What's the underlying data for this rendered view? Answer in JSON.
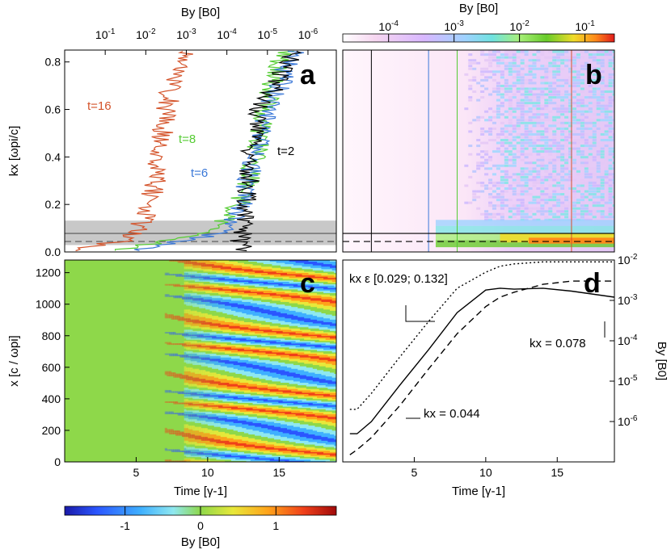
{
  "colors": {
    "t16": "#d4532a",
    "t8": "#55cc33",
    "t6": "#3a78d8",
    "t2": "#000000",
    "band": "#c8c8c8"
  },
  "chart_data": [
    {
      "id": "a",
      "type": "line",
      "panel_label": "a",
      "xlabel": "B_y [B_0]",
      "ylabel": "k_x [ω_pi/c]",
      "xscale": "log-reversed",
      "xlim": [
        1.0,
        2e-07
      ],
      "ylim": [
        0,
        0.85
      ],
      "x_ticks": [
        "10^-1",
        "10^-2",
        "10^-3",
        "10^-4",
        "10^-5",
        "10^-6"
      ],
      "y_ticks": [
        "0.0",
        "0.2",
        "0.4",
        "0.6",
        "0.8"
      ],
      "shaded_band_kx": [
        0.029,
        0.132
      ],
      "ref_lines": [
        {
          "kx": 0.078,
          "style": "solid"
        },
        {
          "kx": 0.044,
          "style": "dashed"
        }
      ],
      "series": [
        {
          "name": "t=16",
          "label": "t=16",
          "kx": [
            0.01,
            0.03,
            0.05,
            0.08,
            0.1,
            0.15,
            0.2,
            0.3,
            0.4,
            0.5,
            0.6,
            0.7,
            0.8,
            0.85
          ],
          "By": [
            0.4,
            0.15,
            0.03,
            0.02,
            0.015,
            0.01,
            0.008,
            0.006,
            0.005,
            0.004,
            0.003,
            0.0025,
            0.0015,
            0.001
          ]
        },
        {
          "name": "t=8",
          "label": "t=8",
          "kx": [
            0.01,
            0.03,
            0.05,
            0.08,
            0.1,
            0.15,
            0.2,
            0.3,
            0.4,
            0.5,
            0.6,
            0.7,
            0.8,
            0.85
          ],
          "By": [
            0.05,
            0.01,
            0.003,
            0.0003,
            0.0002,
            0.0001,
            5e-05,
            3e-05,
            2e-05,
            1.5e-05,
            1.2e-05,
            8e-06,
            5e-06,
            3e-06
          ]
        },
        {
          "name": "t=6",
          "label": "t=6",
          "kx": [
            0.01,
            0.03,
            0.05,
            0.08,
            0.1,
            0.15,
            0.2,
            0.3,
            0.4,
            0.5,
            0.6,
            0.7,
            0.8,
            0.85
          ],
          "By": [
            0.015,
            0.004,
            0.001,
            0.00015,
            0.0001,
            6e-05,
            4e-05,
            3e-05,
            2e-05,
            1.5e-05,
            1e-05,
            5e-06,
            3e-06,
            2e-06
          ]
        },
        {
          "name": "t=2",
          "label": "t=2",
          "kx": [
            0.01,
            0.03,
            0.05,
            0.08,
            0.1,
            0.15,
            0.2,
            0.3,
            0.4,
            0.5,
            0.6,
            0.7,
            0.8,
            0.85
          ],
          "By": [
            4e-05,
            4e-05,
            5e-05,
            4e-05,
            4e-05,
            3.5e-05,
            3e-05,
            3e-05,
            2.5e-05,
            2e-05,
            1.5e-05,
            6e-06,
            3e-06,
            2e-06
          ]
        }
      ]
    },
    {
      "id": "b",
      "type": "heatmap",
      "panel_label": "b",
      "colorbar_label": "B_y [B_0]",
      "colorbar_ticks": [
        "10^-4",
        "10^-3",
        "10^-2",
        "10^-1"
      ],
      "xlim": [
        0,
        19
      ],
      "ylim": [
        0,
        0.85
      ],
      "markers_time": [
        2,
        6,
        8,
        16
      ]
    },
    {
      "id": "c",
      "type": "heatmap",
      "panel_label": "c",
      "xlabel": "Time [γ^-1]",
      "ylabel": "x [c / ω_pi]",
      "xlim": [
        0,
        19
      ],
      "ylim": [
        0,
        1280
      ],
      "x_ticks": [
        "5",
        "10",
        "15"
      ],
      "y_ticks": [
        "0",
        "200",
        "400",
        "600",
        "800",
        "1000",
        "1200"
      ],
      "colorbar_label": "B_y [B_0]",
      "colorbar_range": [
        -1.8,
        1.8
      ],
      "colorbar_ticks": [
        "-1",
        "0",
        "1"
      ]
    },
    {
      "id": "d",
      "type": "line",
      "panel_label": "d",
      "xlabel": "Time [γ^-1]",
      "ylabel": "B_y [B_0]",
      "yscale": "log",
      "xlim": [
        0,
        19
      ],
      "ylim": [
        1e-07,
        0.01
      ],
      "x_ticks": [
        "5",
        "10",
        "15"
      ],
      "y_ticks": [
        "10^-2",
        "10^-3",
        "10^-4",
        "10^-5",
        "10^-6"
      ],
      "annotations": [
        "k_x ε [0.029; 0.132]",
        "k_x = 0.078",
        "k_x = 0.044"
      ],
      "series": [
        {
          "name": "kx in [0.029; 0.132]",
          "style": "dotted",
          "t": [
            0.5,
            1,
            2,
            4,
            6,
            8,
            10,
            11,
            12,
            14,
            16,
            19
          ],
          "By": [
            2e-06,
            2e-06,
            5e-06,
            4e-05,
            0.0003,
            0.002,
            0.005,
            0.007,
            0.008,
            0.009,
            0.009,
            0.009
          ]
        },
        {
          "name": "kx = 0.078",
          "style": "solid",
          "t": [
            0.5,
            1,
            2,
            4,
            6,
            8,
            10,
            11,
            12,
            14,
            16,
            19
          ],
          "By": [
            5e-07,
            5e-07,
            1e-06,
            8e-06,
            6e-05,
            0.0005,
            0.0018,
            0.002,
            0.0019,
            0.002,
            0.0017,
            0.0012
          ]
        },
        {
          "name": "kx = 0.044",
          "style": "dashed",
          "t": [
            0.5,
            1,
            2,
            4,
            6,
            8,
            10,
            11,
            12,
            14,
            16,
            19
          ],
          "By": [
            1.5e-07,
            2e-07,
            4e-07,
            2.5e-06,
            2e-05,
            0.00015,
            0.0007,
            0.0012,
            0.0016,
            0.0025,
            0.003,
            0.003
          ]
        }
      ]
    }
  ],
  "text": {
    "a_top_axis": "By [B0]",
    "b_top_axis": "By [B0]",
    "a_ylabel": "kx [ωpi/c]",
    "c_ylabel": "x [c / ωpi]",
    "c_xlabel": "Time [γ-1]",
    "d_xlabel": "Time [γ-1]",
    "d_ylabel": "By [B0]",
    "c_colorbar": "By [B0]",
    "ann_band": "kx ε [0.029; 0.132]",
    "ann_078": "kx = 0.078",
    "ann_044": "kx = 0.044"
  }
}
